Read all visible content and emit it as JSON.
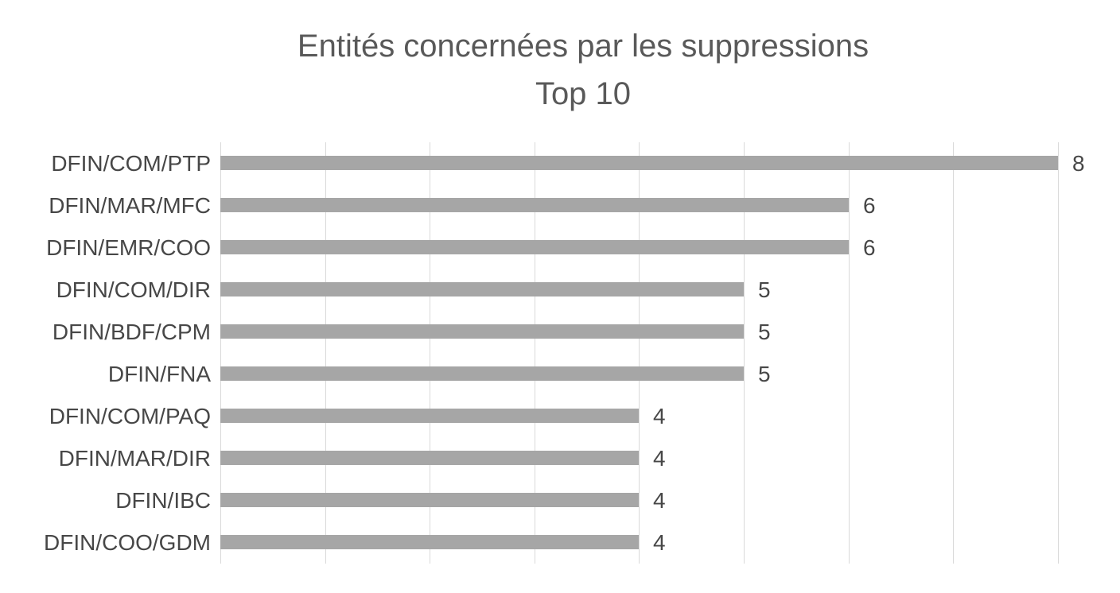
{
  "title": {
    "line1": "Entités concernées par les suppressions",
    "line2": "Top 10"
  },
  "chart_data": {
    "type": "bar",
    "orientation": "horizontal",
    "title": "Entités concernées par les suppressions",
    "subtitle": "Top 10",
    "categories": [
      "DFIN/COM/PTP",
      "DFIN/MAR/MFC",
      "DFIN/EMR/COO",
      "DFIN/COM/DIR",
      "DFIN/BDF/CPM",
      "DFIN/FNA",
      "DFIN/COM/PAQ",
      "DFIN/MAR/DIR",
      "DFIN/IBC",
      "DFIN/COO/GDM"
    ],
    "values": [
      8,
      6,
      6,
      5,
      5,
      5,
      4,
      4,
      4,
      4
    ],
    "data_labels": [
      8,
      6,
      6,
      5,
      5,
      5,
      4,
      4,
      4,
      4
    ],
    "xlabel": "",
    "ylabel": "",
    "xlim": [
      0,
      8
    ],
    "gridline_step": 1,
    "grid": true,
    "legend": false,
    "colors": {
      "bar": "#a6a6a6",
      "gridline": "#d9d9d9",
      "title": "#595959",
      "label": "#474747",
      "background": "#ffffff"
    }
  }
}
